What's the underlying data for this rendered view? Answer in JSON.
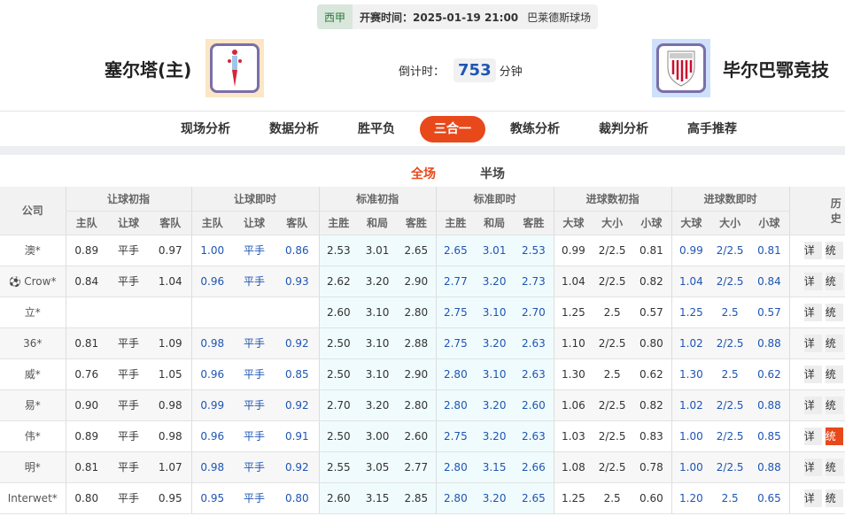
{
  "match": {
    "league": "西甲",
    "kickoff": "开赛时间：2025-01-19 21:00",
    "venue": "巴莱德斯球场",
    "home": "塞尔塔(主)",
    "away": "毕尔巴鄂竞技",
    "countdown_label": "倒计时：",
    "countdown_value": "753",
    "countdown_unit": "分钟"
  },
  "nav": {
    "items": [
      "现场分析",
      "数据分析",
      "胜平负",
      "三合一",
      "教练分析",
      "裁判分析",
      "高手推荐"
    ],
    "active": 3
  },
  "subtabs": {
    "items": [
      "全场",
      "半场"
    ],
    "active": 0
  },
  "table": {
    "company_header": "公司",
    "groups": [
      "让球初指",
      "让球即时",
      "标准初指",
      "标准即时",
      "进球数初指",
      "进球数即时",
      "历史"
    ],
    "subheaders": [
      "主队",
      "让球",
      "客队",
      "主队",
      "让球",
      "客队",
      "主胜",
      "和局",
      "客胜",
      "主胜",
      "和局",
      "客胜",
      "大球",
      "大小",
      "小球",
      "大球",
      "大小",
      "小球"
    ],
    "detail_label": "详",
    "stats_label": "统",
    "rows": [
      {
        "company": "澳*",
        "v": [
          "0.89",
          "平手",
          "0.97",
          "1.00",
          "平手",
          "0.86",
          "2.53",
          "3.01",
          "2.65",
          "2.65",
          "3.01",
          "2.53",
          "0.99",
          "2/2.5",
          "0.81",
          "0.99",
          "2/2.5",
          "0.81"
        ]
      },
      {
        "company": "Crow*",
        "icon": "soccer-ball-icon",
        "v": [
          "0.84",
          "平手",
          "1.04",
          "0.96",
          "平手",
          "0.93",
          "2.62",
          "3.20",
          "2.90",
          "2.77",
          "3.20",
          "2.73",
          "1.04",
          "2/2.5",
          "0.82",
          "1.04",
          "2/2.5",
          "0.84"
        ]
      },
      {
        "company": "立*",
        "v": [
          "",
          "",
          "",
          "",
          "",
          "",
          "2.60",
          "3.10",
          "2.80",
          "2.75",
          "3.10",
          "2.70",
          "1.25",
          "2.5",
          "0.57",
          "1.25",
          "2.5",
          "0.57"
        ]
      },
      {
        "company": "36*",
        "v": [
          "0.81",
          "平手",
          "1.09",
          "0.98",
          "平手",
          "0.92",
          "2.50",
          "3.10",
          "2.88",
          "2.75",
          "3.20",
          "2.63",
          "1.10",
          "2/2.5",
          "0.80",
          "1.02",
          "2/2.5",
          "0.88"
        ]
      },
      {
        "company": "威*",
        "v": [
          "0.76",
          "平手",
          "1.05",
          "0.96",
          "平手",
          "0.85",
          "2.50",
          "3.10",
          "2.90",
          "2.80",
          "3.10",
          "2.63",
          "1.30",
          "2.5",
          "0.62",
          "1.30",
          "2.5",
          "0.62"
        ]
      },
      {
        "company": "易*",
        "v": [
          "0.90",
          "平手",
          "0.98",
          "0.99",
          "平手",
          "0.92",
          "2.70",
          "3.20",
          "2.80",
          "2.80",
          "3.20",
          "2.60",
          "1.06",
          "2/2.5",
          "0.82",
          "1.02",
          "2/2.5",
          "0.88"
        ]
      },
      {
        "company": "伟*",
        "v": [
          "0.89",
          "平手",
          "0.98",
          "0.96",
          "平手",
          "0.91",
          "2.50",
          "3.00",
          "2.60",
          "2.75",
          "3.20",
          "2.63",
          "1.03",
          "2/2.5",
          "0.83",
          "1.00",
          "2/2.5",
          "0.85"
        ],
        "stats_active": true
      },
      {
        "company": "明*",
        "v": [
          "0.81",
          "平手",
          "1.07",
          "0.98",
          "平手",
          "0.92",
          "2.55",
          "3.05",
          "2.77",
          "2.80",
          "3.15",
          "2.66",
          "1.08",
          "2/2.5",
          "0.78",
          "1.00",
          "2/2.5",
          "0.88"
        ]
      },
      {
        "company": "Interwet*",
        "v": [
          "0.80",
          "平手",
          "0.95",
          "0.95",
          "平手",
          "0.80",
          "2.60",
          "3.15",
          "2.85",
          "2.80",
          "3.20",
          "2.65",
          "1.25",
          "2.5",
          "0.60",
          "1.20",
          "2.5",
          "0.65"
        ]
      }
    ]
  },
  "colors": {
    "accent": "#e8491b",
    "live_value": "#1e55b4",
    "cyan_bg": "#f0fbfd"
  }
}
